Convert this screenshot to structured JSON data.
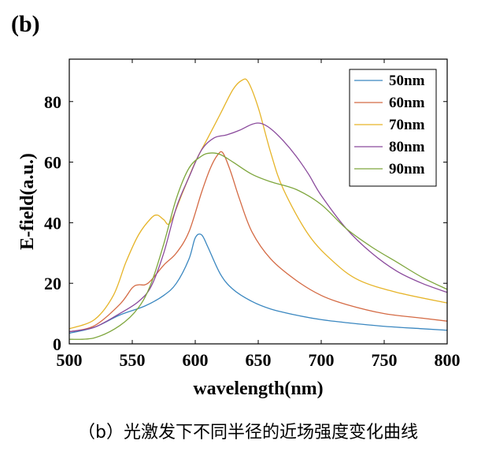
{
  "panel_label": "(b)",
  "caption": "（b）光激发下不同半径的近场强度变化曲线",
  "chart_data": {
    "type": "line",
    "title": "",
    "xlabel": "wavelength(nm)",
    "ylabel": "E-field(a.u.)",
    "xlim": [
      500,
      800
    ],
    "ylim": [
      0,
      94
    ],
    "xticks": [
      500,
      550,
      600,
      650,
      700,
      750,
      800
    ],
    "yticks": [
      0,
      20,
      40,
      60,
      80
    ],
    "legend_position": "top-right",
    "series": [
      {
        "name": "50nm",
        "color": "#3a87c0",
        "x": [
          500,
          520,
          540,
          560,
          575,
          585,
          595,
          600,
          605,
          610,
          620,
          630,
          645,
          660,
          680,
          700,
          720,
          750,
          780,
          800
        ],
        "y": [
          3.5,
          5.5,
          9.5,
          12.5,
          16,
          20,
          28,
          35,
          36,
          32,
          23,
          18,
          14,
          11.5,
          9.5,
          8,
          7,
          5.8,
          5,
          4.5
        ]
      },
      {
        "name": "60nm",
        "color": "#d46a44",
        "x": [
          500,
          520,
          540,
          550,
          555,
          560,
          565,
          575,
          585,
          595,
          605,
          612,
          618,
          622,
          628,
          635,
          645,
          660,
          680,
          700,
          720,
          750,
          780,
          800
        ],
        "y": [
          4,
          6,
          13,
          18.5,
          19.5,
          19.5,
          21,
          26,
          30,
          37,
          50,
          58,
          62.5,
          63,
          57,
          48,
          37,
          28,
          21,
          16,
          13,
          10,
          8.5,
          7.5
        ]
      },
      {
        "name": "70nm",
        "color": "#e6b428",
        "x": [
          500,
          520,
          535,
          545,
          555,
          565,
          570,
          575,
          580,
          590,
          600,
          610,
          620,
          630,
          637,
          642,
          650,
          660,
          670,
          690,
          710,
          730,
          760,
          800
        ],
        "y": [
          5,
          8,
          16,
          27,
          36,
          41.5,
          42.5,
          41,
          40,
          50,
          60,
          68,
          76,
          84,
          87,
          86.5,
          78,
          63,
          51,
          36,
          27,
          21,
          17,
          13.5
        ]
      },
      {
        "name": "80nm",
        "color": "#8a4a9c",
        "x": [
          500,
          520,
          540,
          555,
          565,
          575,
          585,
          595,
          605,
          615,
          625,
          635,
          645,
          652,
          660,
          670,
          680,
          690,
          700,
          720,
          740,
          760,
          780,
          800
        ],
        "y": [
          4,
          5.5,
          10,
          14,
          19,
          30,
          45,
          55,
          64,
          68,
          69,
          70.5,
          72.5,
          72.8,
          71,
          67,
          62,
          56,
          49,
          38,
          30,
          24,
          20,
          17
        ]
      },
      {
        "name": "90nm",
        "color": "#7ea63d",
        "x": [
          500,
          520,
          540,
          555,
          565,
          575,
          585,
          595,
          605,
          612,
          620,
          630,
          645,
          660,
          680,
          700,
          720,
          740,
          760,
          780,
          800
        ],
        "y": [
          1.5,
          2,
          6,
          12,
          20,
          33,
          48,
          58,
          62,
          63,
          62.5,
          60,
          56,
          53.5,
          51,
          46,
          38,
          32,
          27,
          22,
          18
        ]
      }
    ]
  }
}
